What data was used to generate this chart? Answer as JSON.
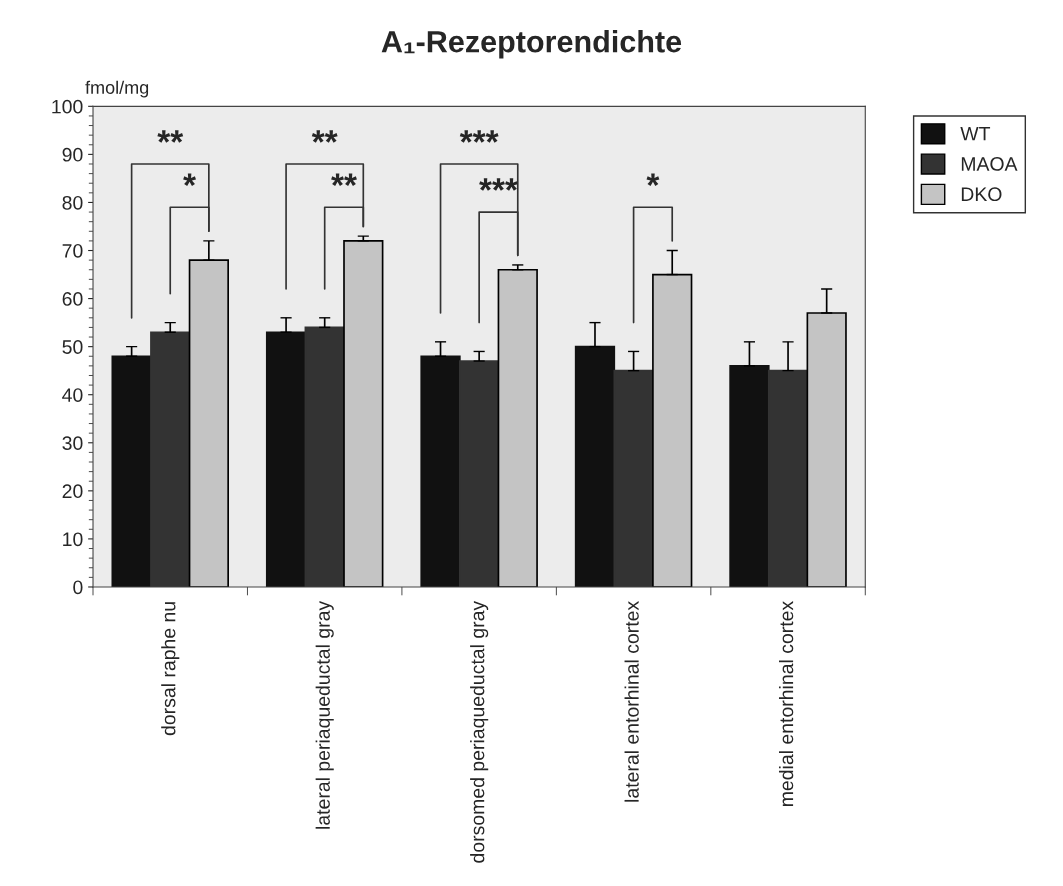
{
  "chart_data": {
    "type": "bar",
    "title": "A₁-Rezeptorendichte",
    "ylabel": "fmol/mg",
    "categories": [
      "dorsal raphe nu",
      "lateral periaqueductal gray",
      "dorsomed periaqueductal gray",
      "lateral entorhinal cortex",
      "medial entorhinal cortex"
    ],
    "series": [
      {
        "name": "WT",
        "color": "#111111",
        "values": [
          48,
          53,
          48,
          50,
          46
        ],
        "errors": [
          [
            48,
            50
          ],
          [
            53,
            56
          ],
          [
            48,
            51
          ],
          [
            50,
            55
          ],
          [
            46,
            51
          ]
        ]
      },
      {
        "name": "MAOA",
        "color": "#333333",
        "values": [
          53,
          54,
          47,
          45,
          45
        ],
        "errors": [
          [
            53,
            55
          ],
          [
            54,
            56
          ],
          [
            47,
            49
          ],
          [
            45,
            49
          ],
          [
            45,
            51
          ]
        ]
      },
      {
        "name": "DKO",
        "color": "#c4c4c4",
        "values": [
          68,
          72,
          66,
          65,
          57
        ],
        "errors": [
          [
            68,
            72
          ],
          [
            72,
            73
          ],
          [
            66,
            67
          ],
          [
            65,
            70
          ],
          [
            57,
            62
          ]
        ]
      }
    ],
    "ylim": [
      0,
      100
    ],
    "yticks": [
      0,
      10,
      20,
      30,
      40,
      50,
      60,
      70,
      80,
      90,
      100
    ],
    "grid": false,
    "legend": "top right",
    "annotations": [
      "**",
      "*",
      "**",
      "**",
      "***",
      "***",
      "*"
    ]
  }
}
